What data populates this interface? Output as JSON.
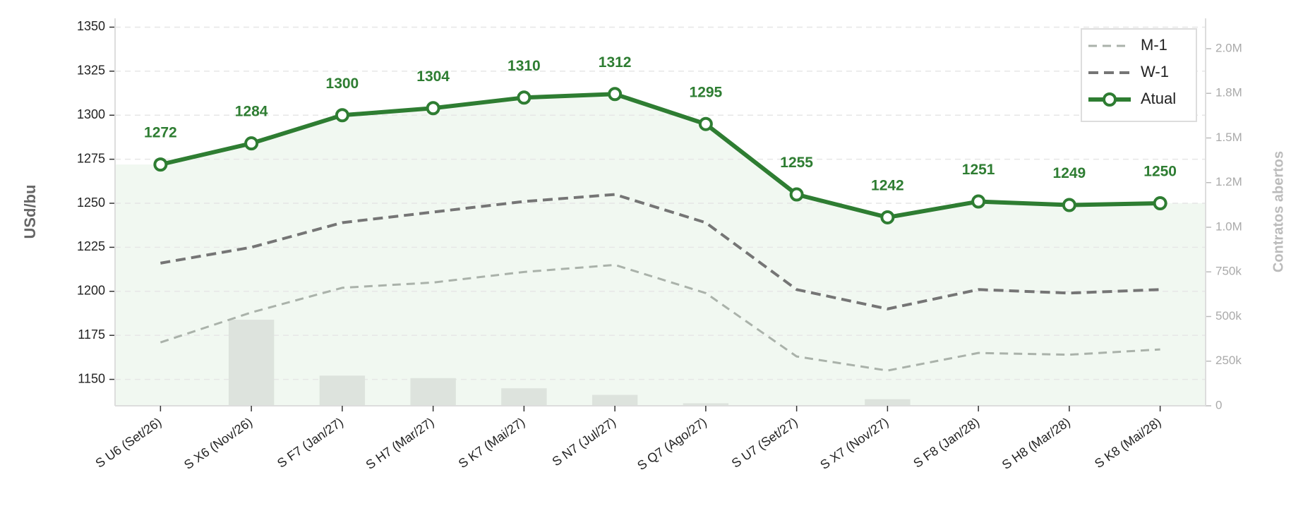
{
  "chart_data": {
    "type": "line",
    "categories": [
      "S U6 (Set/26)",
      "S X6 (Nov/26)",
      "S F7 (Jan/27)",
      "S H7 (Mar/27)",
      "S K7 (Mai/27)",
      "S N7 (Jul/27)",
      "S Q7 (Ago/27)",
      "S U7 (Set/27)",
      "S X7 (Nov/27)",
      "S F8 (Jan/28)",
      "S H8 (Mar/28)",
      "S K8 (Mai/28)"
    ],
    "series": [
      {
        "name": "M-1",
        "color": "#aab2aa",
        "style": "dashed",
        "values": [
          1171,
          1188,
          1202,
          1205,
          1211,
          1215,
          1199,
          1163,
          1155,
          1165,
          1164,
          1167
        ]
      },
      {
        "name": "W-1",
        "color": "#757575",
        "style": "dashed",
        "values": [
          1216,
          1225,
          1239,
          1245,
          1251,
          1255,
          1239,
          1201,
          1190,
          1201,
          1199,
          1201
        ]
      },
      {
        "name": "Atual",
        "color": "#2e7d32",
        "style": "solid",
        "markers": true,
        "data_labels": true,
        "values": [
          1272,
          1284,
          1300,
          1304,
          1310,
          1312,
          1295,
          1255,
          1242,
          1251,
          1249,
          1250
        ]
      },
      {
        "type": "bar",
        "axis": "y2",
        "color": "#dde3dd",
        "values": [
          0,
          482000,
          169000,
          155000,
          98000,
          61000,
          14000,
          0,
          37000,
          0,
          0,
          0
        ]
      }
    ],
    "y_label": "USd/bu",
    "y2_label": "Contratos abertos",
    "ylim": [
      1135,
      1355
    ],
    "yticks": [
      1150,
      1175,
      1200,
      1225,
      1250,
      1275,
      1300,
      1325,
      1350
    ],
    "y2lim": [
      0,
      2170000
    ],
    "y2ticks": [
      0,
      {
        "value": 250000,
        "label": "250k"
      },
      {
        "value": 500000,
        "label": "500k"
      },
      {
        "value": 750000,
        "label": "750k"
      },
      {
        "value": 1000000,
        "label": "1.0M"
      },
      {
        "value": 1250000,
        "label": "1.2M"
      },
      {
        "value": 1500000,
        "label": "1.5M"
      },
      {
        "value": 1750000,
        "label": "1.8M"
      },
      {
        "value": 2000000,
        "label": "2.0M"
      }
    ],
    "grid": true,
    "legend": "upper right",
    "area_color": "#f1f8f1"
  }
}
